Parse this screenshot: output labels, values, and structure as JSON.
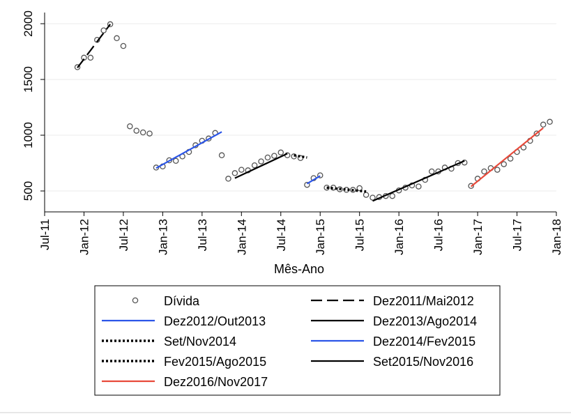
{
  "chart_data": {
    "type": "scatter",
    "title": "",
    "xlabel": "Mês-Ano",
    "ylabel": "",
    "xlim": [
      0,
      78
    ],
    "ylim": [
      350,
      2100
    ],
    "x_ticks": [
      {
        "x": 0,
        "label": "Jul-11"
      },
      {
        "x": 6,
        "label": "Jan-12"
      },
      {
        "x": 12,
        "label": "Jul-12"
      },
      {
        "x": 18,
        "label": "Jan-13"
      },
      {
        "x": 24,
        "label": "Jul-13"
      },
      {
        "x": 30,
        "label": "Jan-14"
      },
      {
        "x": 36,
        "label": "Jul-14"
      },
      {
        "x": 42,
        "label": "Jan-15"
      },
      {
        "x": 48,
        "label": "Jul-15"
      },
      {
        "x": 54,
        "label": "Jan-16"
      },
      {
        "x": 60,
        "label": "Jul-16"
      },
      {
        "x": 66,
        "label": "Jan-17"
      },
      {
        "x": 72,
        "label": "Jul-17"
      },
      {
        "x": 78,
        "label": "Jan-18"
      }
    ],
    "y_ticks": [
      500,
      1000,
      1500,
      2000
    ],
    "grid": true,
    "x_unit": "months since Jul-11",
    "points": {
      "name": "Dívida",
      "x": [
        5,
        6,
        7,
        8,
        9,
        10,
        11,
        12,
        13,
        14,
        15,
        16,
        17,
        18,
        19,
        20,
        21,
        22,
        23,
        24,
        25,
        26,
        27,
        28,
        29,
        30,
        31,
        32,
        33,
        34,
        35,
        36,
        37,
        38,
        39,
        40,
        41,
        42,
        43,
        44,
        45,
        46,
        47,
        48,
        49,
        50,
        51,
        52,
        53,
        54,
        55,
        56,
        57,
        58,
        59,
        60,
        61,
        62,
        63,
        64,
        65,
        66,
        67,
        68,
        69,
        70,
        71,
        72,
        73,
        74,
        75,
        76,
        77
      ],
      "y": [
        1610,
        1695,
        1695,
        1855,
        1940,
        1995,
        1870,
        1800,
        1080,
        1040,
        1025,
        1015,
        710,
        720,
        775,
        770,
        810,
        850,
        910,
        950,
        970,
        1020,
        820,
        610,
        660,
        690,
        685,
        730,
        765,
        800,
        815,
        845,
        820,
        810,
        795,
        555,
        615,
        640,
        530,
        530,
        515,
        510,
        510,
        525,
        465,
        440,
        445,
        455,
        455,
        505,
        530,
        550,
        540,
        600,
        675,
        675,
        710,
        700,
        750,
        755,
        545,
        610,
        675,
        705,
        690,
        740,
        790,
        850,
        890,
        950,
        1015,
        1095,
        1120
      ]
    },
    "series": [
      {
        "name": "Dez2011/Mai2012",
        "style": "dash",
        "color": "#000000",
        "x": [
          5,
          10
        ],
        "y": [
          1605,
          1995
        ]
      },
      {
        "name": "Dez2012/Out2013",
        "style": "solid",
        "color": "#2b55e8",
        "x": [
          17,
          27
        ],
        "y": [
          705,
          1030
        ]
      },
      {
        "name": "Set/Nov2014",
        "style": "dot",
        "color": "#000000",
        "x": [
          38,
          40
        ],
        "y": [
          820,
          800
        ]
      },
      {
        "name": "Fev2015/Ago2015",
        "style": "dot",
        "color": "#000000",
        "x": [
          43,
          49
        ],
        "y": [
          530,
          495
        ]
      },
      {
        "name": "Dez2016/Nov2017",
        "style": "solid",
        "color": "#e8493a",
        "x": [
          65,
          76
        ],
        "y": [
          540,
          1065
        ]
      },
      {
        "name": "Dez2013/Ago2014",
        "style": "solid",
        "color": "#000000",
        "x": [
          29,
          37
        ],
        "y": [
          615,
          835
        ]
      },
      {
        "name": "Dez2014/Fev2015",
        "style": "solid",
        "color": "#2b55e8",
        "x": [
          40,
          42
        ],
        "y": [
          565,
          635
        ]
      },
      {
        "name": "Set2015/Nov2016",
        "style": "solid",
        "color": "#000000",
        "x": [
          50,
          64
        ],
        "y": [
          410,
          770
        ]
      }
    ],
    "legend": {
      "placement": "bottom",
      "entries": [
        {
          "label": "Dívida",
          "kind": "marker"
        },
        {
          "label": "Dez2011/Mai2012",
          "kind": "dash",
          "color": "#000000"
        },
        {
          "label": "Dez2012/Out2013",
          "kind": "solid",
          "color": "#2b55e8"
        },
        {
          "label": "Dez2013/Ago2014",
          "kind": "solid",
          "color": "#000000"
        },
        {
          "label": "Set/Nov2014",
          "kind": "dot",
          "color": "#000000"
        },
        {
          "label": "Dez2014/Fev2015",
          "kind": "solid",
          "color": "#2b55e8"
        },
        {
          "label": "Fev2015/Ago2015",
          "kind": "dot",
          "color": "#000000"
        },
        {
          "label": "Set2015/Nov2016",
          "kind": "solid",
          "color": "#000000"
        },
        {
          "label": "Dez2016/Nov2017",
          "kind": "solid",
          "color": "#e8493a"
        }
      ]
    }
  }
}
